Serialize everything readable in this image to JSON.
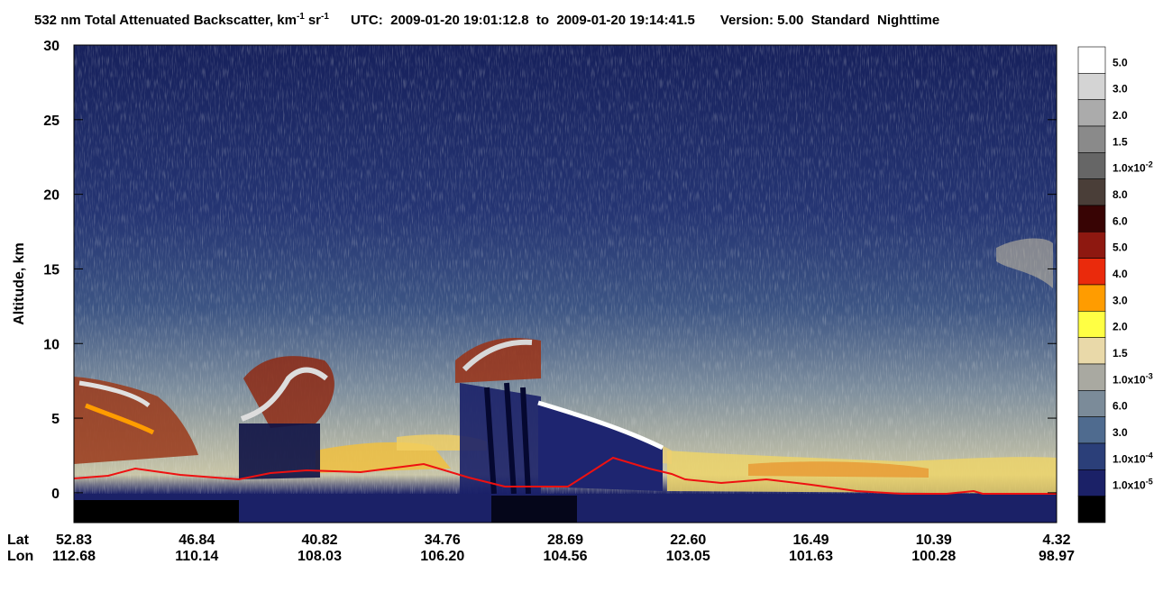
{
  "chart_data": {
    "type": "heatmap",
    "title": {
      "quantity": "532 nm Total Attenuated Backscatter, km",
      "exp1": "-1",
      "unit": "sr",
      "exp2": "-1",
      "time": "UTC:  2009-01-20 19:01:12.8  to  2009-01-20 19:14:41.5",
      "version": "Version: 5.00  Standard  Nighttime"
    },
    "ylabel": "Altitude, km",
    "ylim": [
      -2,
      30
    ],
    "yticks": [
      0,
      5,
      10,
      15,
      20,
      25,
      30
    ],
    "x_rows": [
      {
        "name": "Lat",
        "values": [
          "52.83",
          "46.84",
          "40.82",
          "34.76",
          "28.69",
          "22.60",
          "16.49",
          "10.39",
          "4.32"
        ]
      },
      {
        "name": "Lon",
        "values": [
          "112.68",
          "110.14",
          "108.03",
          "106.20",
          "104.56",
          "103.05",
          "101.63",
          "100.28",
          "98.97"
        ]
      }
    ],
    "colorbar": {
      "colors": [
        "#ffffff",
        "#d4d4d4",
        "#ababab",
        "#8a8a8a",
        "#666666",
        "#4a3e38",
        "#380404",
        "#8e1810",
        "#ea2a0c",
        "#ff9c00",
        "#ffff44",
        "#e9d9a9",
        "#a9a9a1",
        "#7b8b99",
        "#4f6b8f",
        "#2b3f79",
        "#1b2167",
        "#000000"
      ],
      "labels": [
        {
          "text": "5.0"
        },
        {
          "text": "3.0"
        },
        {
          "text": "2.0"
        },
        {
          "text": "1.5"
        },
        {
          "text": "1.0x10",
          "sup": "-2"
        },
        {
          "text": "8.0"
        },
        {
          "text": "6.0"
        },
        {
          "text": "5.0"
        },
        {
          "text": "4.0"
        },
        {
          "text": "3.0"
        },
        {
          "text": "2.0"
        },
        {
          "text": "1.5"
        },
        {
          "text": "1.0x10",
          "sup": "-3"
        },
        {
          "text": "6.0"
        },
        {
          "text": "3.0"
        },
        {
          "text": "1.0x10",
          "sup": "-4"
        },
        {
          "text": "1.0x10",
          "sup": "-5"
        }
      ]
    }
  }
}
